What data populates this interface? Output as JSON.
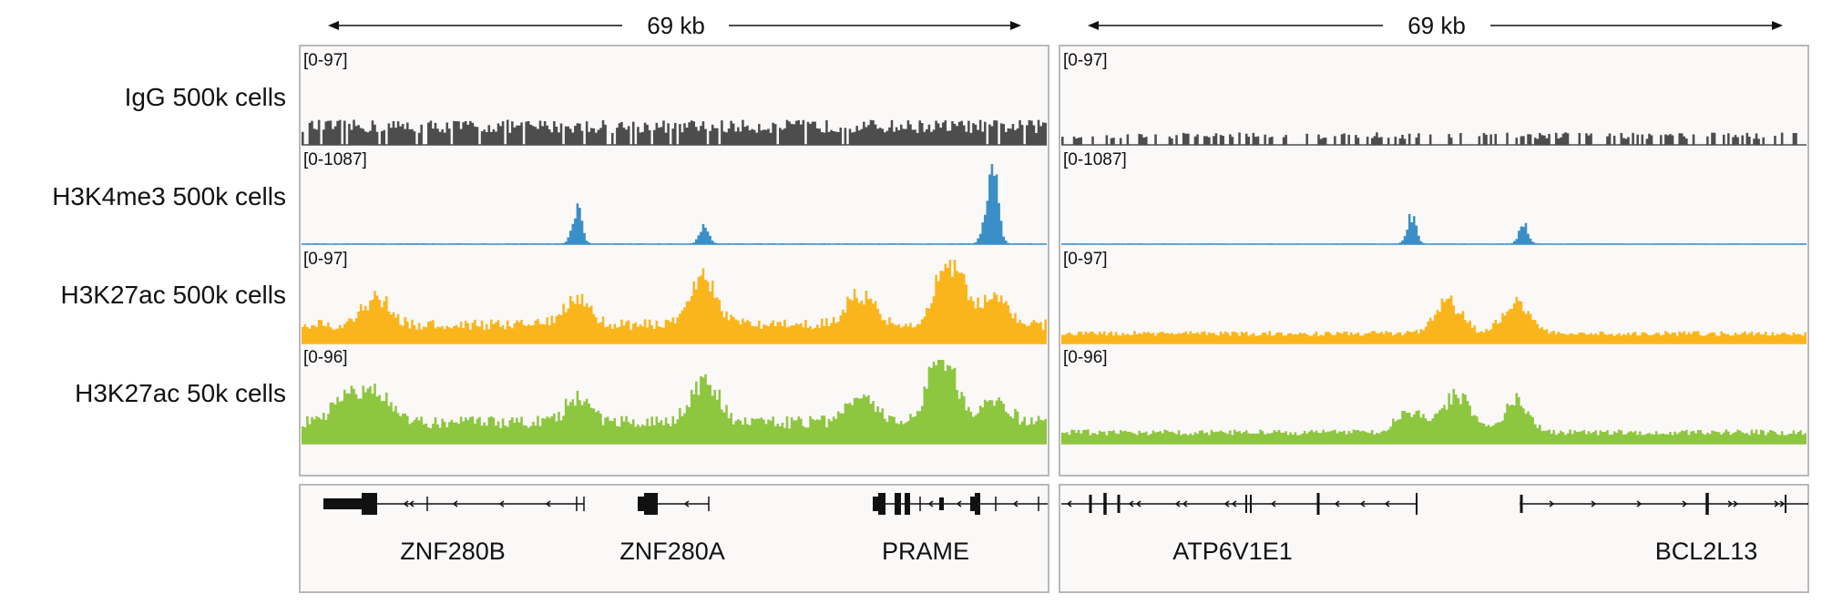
{
  "chart_data": {
    "type": "area",
    "tracks": [
      {
        "name": "IgG 500k cells",
        "color": "#4d4d4d",
        "ranges": [
          "[0-97]",
          "[0-97]"
        ],
        "peaks": [
          [],
          []
        ]
      },
      {
        "name": "H3K4me3 500k cells",
        "color": "#3a8fc8",
        "ranges": [
          "[0-1087]",
          "[0-1087]"
        ],
        "peaks": [
          [
            [
              0.37,
              0.48
            ],
            [
              0.54,
              0.2
            ],
            [
              0.92,
              0.4
            ],
            [
              0.93,
              0.85
            ]
          ],
          [
            [
              0.47,
              0.34
            ],
            [
              0.62,
              0.25
            ]
          ]
        ]
      },
      {
        "name": "H3K27ac 500k cells",
        "color": "#fbb51c",
        "ranges": [
          "[0-97]",
          "[0-97]"
        ],
        "peaks": [
          [
            [
              0.1,
              0.34
            ],
            [
              0.37,
              0.32
            ],
            [
              0.54,
              0.55
            ],
            [
              0.75,
              0.38
            ],
            [
              0.87,
              0.85
            ],
            [
              0.93,
              0.34
            ]
          ],
          [
            [
              0.52,
              0.4
            ],
            [
              0.61,
              0.38
            ]
          ]
        ]
      },
      {
        "name": "H3K27ac 50k cells",
        "color": "#8dc63f",
        "ranges": [
          "[0-96]",
          "[0-96]"
        ],
        "peaks": [
          [
            [
              0.06,
              0.34
            ],
            [
              0.1,
              0.38
            ],
            [
              0.37,
              0.28
            ],
            [
              0.54,
              0.55
            ],
            [
              0.75,
              0.35
            ],
            [
              0.86,
              0.82
            ],
            [
              0.93,
              0.3
            ]
          ],
          [
            [
              0.47,
              0.28
            ],
            [
              0.53,
              0.49
            ],
            [
              0.61,
              0.38
            ]
          ]
        ]
      }
    ],
    "panels": [
      {
        "span_label": "69 kb",
        "genes": [
          "ZNF280B",
          "ZNF280A",
          "PRAME"
        ]
      },
      {
        "span_label": "69 kb",
        "genes": [
          "ATP6V1E1",
          "BCL2L13"
        ]
      }
    ],
    "colors": {
      "panel_bg": "#fbf8f8",
      "panel_border": "#b9b9b9"
    }
  }
}
